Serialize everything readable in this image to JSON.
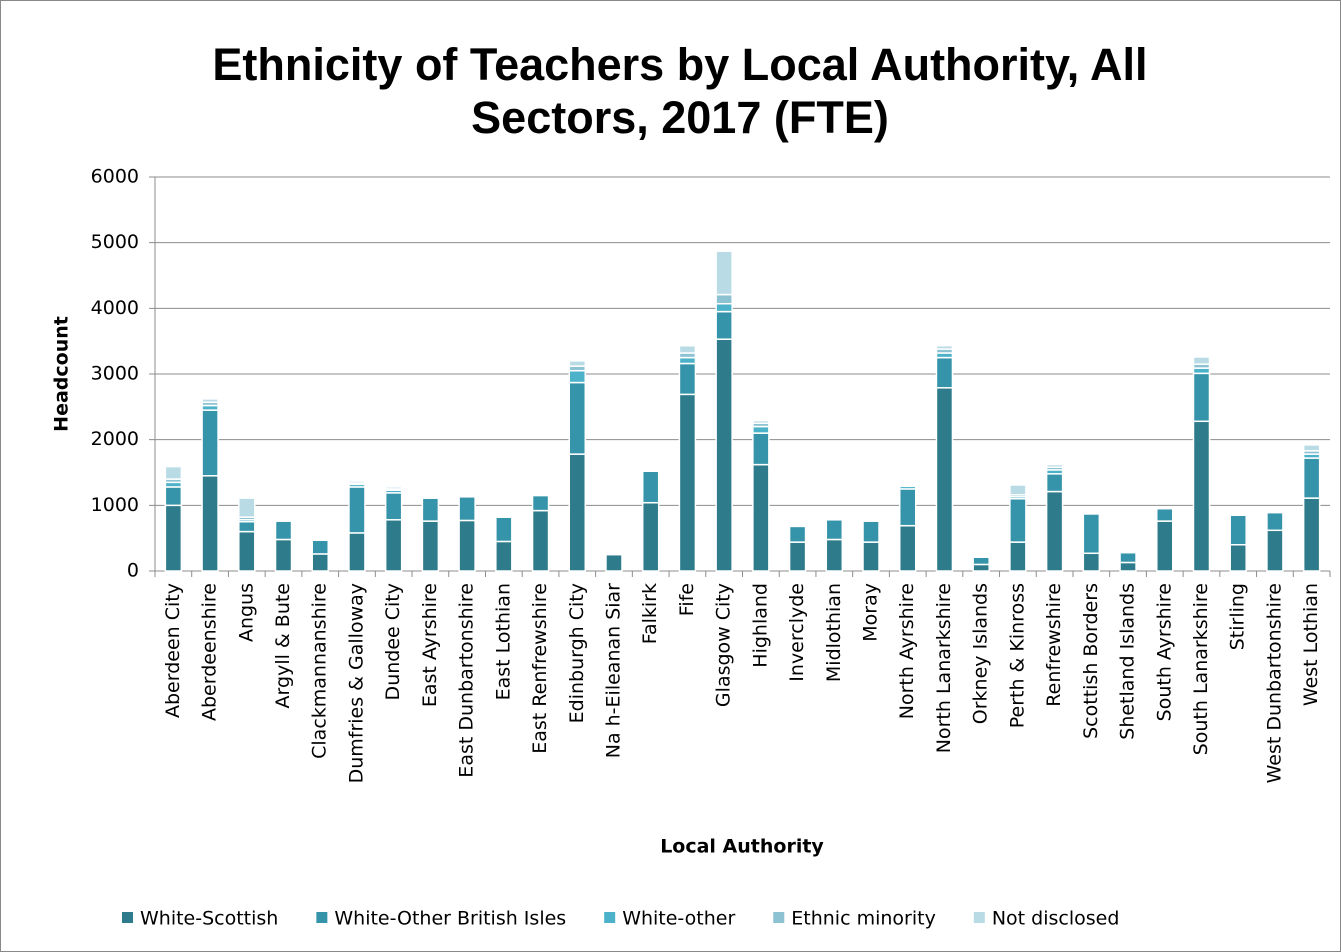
{
  "chart_data": {
    "type": "stacked_bar",
    "title": "Ethnicity of Teachers by Local Authority, All Sectors, 2017 (FTE)",
    "x_label": "Local Authority",
    "y_label": "Headcount",
    "categories": [
      "Aberdeen City",
      "Aberdeenshire",
      "Angus",
      "Argyll & Bute",
      "Clackmannanshire",
      "Dumfries & Galloway",
      "Dundee City",
      "East Ayrshire",
      "East Dunbartonshire",
      "East Lothian",
      "East Renfrewshire",
      "Edinburgh City",
      "Na h-Eileanan Siar",
      "Falkirk",
      "Fife",
      "Glasgow City",
      "Highland",
      "Inverclyde",
      "Midlothian",
      "Moray",
      "North Ayrshire",
      "North Lanarkshire",
      "Orkney Islands",
      "Perth & Kinross",
      "Renfrewshire",
      "Scottish Borders",
      "Shetland Islands",
      "South Ayrshire",
      "South Lanarkshire",
      "Stirling",
      "West Dunbartonshire",
      "West Lothian"
    ],
    "series": [
      {
        "name": "White-Scottish",
        "color": "#2e7b8c",
        "values": [
          1000,
          1450,
          600,
          480,
          260,
          580,
          780,
          760,
          770,
          450,
          920,
          1780,
          250,
          1040,
          2690,
          3530,
          1620,
          440,
          480,
          440,
          690,
          2790,
          100,
          440,
          1210,
          270,
          130,
          760,
          2280,
          400,
          620,
          1110
        ]
      },
      {
        "name": "White-Other British Isles",
        "color": "#3593aa",
        "values": [
          280,
          1000,
          150,
          280,
          210,
          700,
          410,
          350,
          360,
          370,
          230,
          1090,
          10,
          480,
          470,
          420,
          480,
          240,
          300,
          320,
          560,
          460,
          110,
          660,
          270,
          600,
          150,
          190,
          730,
          450,
          270,
          610
        ]
      },
      {
        "name": "White-other",
        "color": "#4bb2c9",
        "values": [
          70,
          70,
          30,
          10,
          5,
          40,
          40,
          10,
          20,
          10,
          20,
          180,
          5,
          10,
          90,
          120,
          100,
          5,
          20,
          10,
          40,
          70,
          5,
          30,
          60,
          10,
          5,
          10,
          80,
          10,
          10,
          60
        ]
      },
      {
        "name": "Ethnic minority",
        "color": "#8dc2d3",
        "values": [
          50,
          50,
          40,
          10,
          5,
          20,
          20,
          5,
          10,
          5,
          10,
          70,
          3,
          5,
          70,
          140,
          50,
          5,
          10,
          5,
          20,
          60,
          5,
          30,
          40,
          5,
          5,
          5,
          60,
          5,
          5,
          50
        ]
      },
      {
        "name": "Not disclosed",
        "color": "#b8dbe6",
        "values": [
          190,
          50,
          290,
          10,
          5,
          30,
          30,
          5,
          10,
          5,
          10,
          80,
          2,
          5,
          110,
          660,
          40,
          5,
          10,
          5,
          20,
          50,
          5,
          150,
          40,
          5,
          5,
          5,
          110,
          5,
          5,
          90
        ]
      }
    ],
    "ylim": [
      0,
      6000
    ],
    "yticks": [
      0,
      1000,
      2000,
      3000,
      4000,
      5000,
      6000
    ],
    "grid": true,
    "legend": "bottom"
  }
}
